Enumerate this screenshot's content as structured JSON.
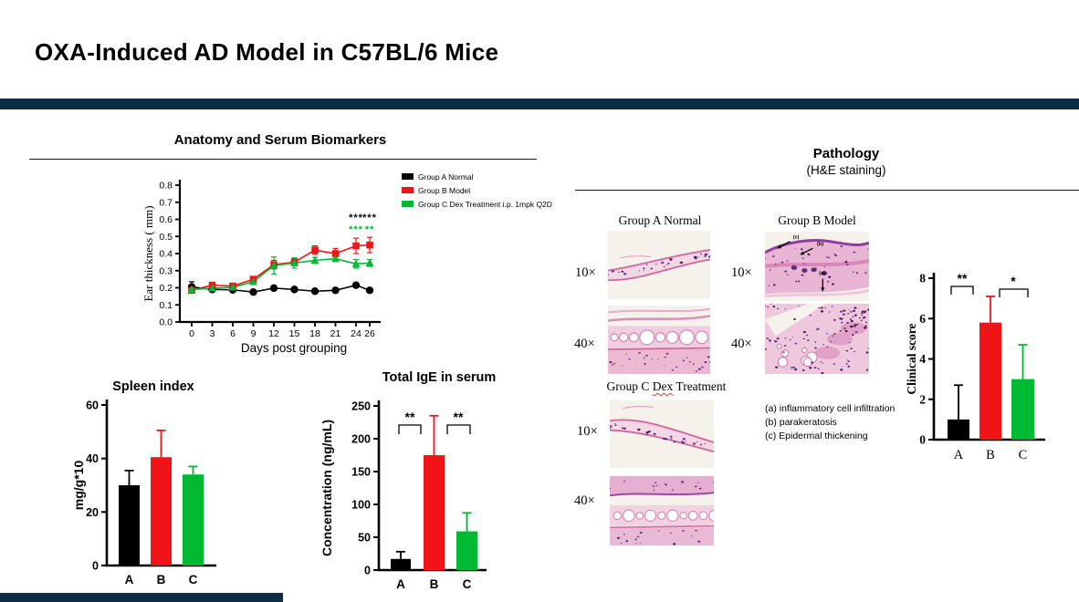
{
  "slide": {
    "title": "OXA-Induced AD Model in C57BL/6 Mice",
    "accent_color": "#0d2c43"
  },
  "sections": {
    "left_title": "Anatomy and Serum Biomarkers",
    "right_title": "Pathology",
    "right_subtitle": "(H&E staining)"
  },
  "chart_data": [
    {
      "id": "ear_thickness",
      "type": "line",
      "title": "",
      "xlabel": "Days post grouping",
      "ylabel": "Ear thickness ( mm)",
      "x": [
        0,
        3,
        6,
        9,
        12,
        15,
        18,
        21,
        24,
        26
      ],
      "ylim": [
        0,
        0.8
      ],
      "yticks": [
        0,
        0.1,
        0.2,
        0.3,
        0.4,
        0.5,
        0.6,
        0.7,
        0.8
      ],
      "grid": false,
      "legend_position": "top-right-outside",
      "series": [
        {
          "name": "Group A Normal",
          "color": "#000000",
          "marker": "circle",
          "values": [
            0.205,
            0.19,
            0.188,
            0.175,
            0.198,
            0.19,
            0.18,
            0.185,
            0.215,
            0.185
          ],
          "errors": [
            0.03,
            0.008,
            0.008,
            0.008,
            0.01,
            0.008,
            0.008,
            0.008,
            0.01,
            0.008
          ]
        },
        {
          "name": "Group B Model",
          "color": "#f01418",
          "marker": "square",
          "values": [
            0.185,
            0.215,
            0.21,
            0.25,
            0.335,
            0.35,
            0.42,
            0.4,
            0.445,
            0.45
          ],
          "errors": [
            0.01,
            0.012,
            0.012,
            0.015,
            0.025,
            0.02,
            0.025,
            0.03,
            0.045,
            0.045
          ]
        },
        {
          "name": "Group C Dex Treatment i.p. 1mpk Q2D",
          "color": "#00b831",
          "marker": "triangle",
          "values": [
            0.19,
            0.197,
            0.203,
            0.235,
            0.33,
            0.345,
            0.36,
            0.37,
            0.34,
            0.345
          ],
          "errors": [
            0.01,
            0.008,
            0.01,
            0.012,
            0.05,
            0.03,
            0.018,
            0.012,
            0.025,
            0.02
          ]
        }
      ],
      "significance": [
        {
          "x": 24,
          "labels": [
            {
              "text": "***",
              "color": "#000000"
            },
            {
              "text": "***",
              "color": "#00b831"
            }
          ]
        },
        {
          "x": 26,
          "labels": [
            {
              "text": "***",
              "color": "#000000"
            },
            {
              "text": "**",
              "color": "#00b831"
            }
          ]
        }
      ]
    },
    {
      "id": "spleen_index",
      "type": "bar",
      "title": "Spleen index",
      "xlabel": "",
      "ylabel": "mg/g*10",
      "categories": [
        "A",
        "B",
        "C"
      ],
      "values": [
        30,
        40.5,
        34
      ],
      "errors": [
        5.5,
        10,
        3
      ],
      "colors": [
        "#000000",
        "#f01418",
        "#00b831"
      ],
      "ylim": [
        0,
        60
      ],
      "yticks": [
        0,
        20,
        40,
        60
      ],
      "significance": []
    },
    {
      "id": "total_ige",
      "type": "bar",
      "title": "Total IgE in serum",
      "xlabel": "",
      "ylabel": "Concentration (ng/mL)",
      "categories": [
        "A",
        "B",
        "C"
      ],
      "values": [
        17,
        175,
        59
      ],
      "errors": [
        11,
        60,
        28
      ],
      "colors": [
        "#000000",
        "#f01418",
        "#00b831"
      ],
      "ylim": [
        0,
        250
      ],
      "yticks": [
        0,
        50,
        100,
        150,
        200,
        250
      ],
      "significance": [
        {
          "pair": [
            "A",
            "B"
          ],
          "label": "**"
        },
        {
          "pair": [
            "B",
            "C"
          ],
          "label": "**"
        }
      ]
    },
    {
      "id": "clinical_score",
      "type": "bar",
      "title": "",
      "xlabel": "",
      "ylabel": "Clinical score",
      "categories": [
        "A",
        "B",
        "C"
      ],
      "values": [
        1,
        5.8,
        3
      ],
      "errors": [
        1.7,
        1.3,
        1.7
      ],
      "colors": [
        "#000000",
        "#f01418",
        "#00b831"
      ],
      "ylim": [
        0,
        8
      ],
      "yticks": [
        0,
        2,
        4,
        6,
        8
      ],
      "significance": [
        {
          "pair": [
            "A",
            "B"
          ],
          "label": "**"
        },
        {
          "pair": [
            "B",
            "C"
          ],
          "label": "*"
        }
      ]
    }
  ],
  "pathology": {
    "group_labels": [
      "Group A Normal",
      "Group B Model",
      "Group C Dex Treatment"
    ],
    "squiggle_word": "Dex",
    "magnification_labels": [
      "10×",
      "40×"
    ],
    "images": [
      {
        "group": "Group A Normal",
        "magnification": "10×",
        "appearance": "thin pale tissue band"
      },
      {
        "group": "Group B Model",
        "magnification": "10×",
        "appearance": "thickened inflamed tissue",
        "markers": [
          "(c)",
          "(b)",
          "(a)"
        ]
      },
      {
        "group": "Group A Normal",
        "magnification": "40×",
        "appearance": "tissue with adipocyte row"
      },
      {
        "group": "Group B Model",
        "magnification": "40×",
        "appearance": "dense inflammatory cell infiltrate"
      },
      {
        "group": "Group C Dex Treatment",
        "magnification": "10×",
        "appearance": "thin tissue band"
      },
      {
        "group": "Group C Dex Treatment",
        "magnification": "40×",
        "appearance": "layered tissue with adipocytes"
      }
    ],
    "marker_legend": [
      "(a) inflammatory cell infiltration",
      "(b) parakeratosis",
      "(c) Epidermal thickening"
    ]
  }
}
